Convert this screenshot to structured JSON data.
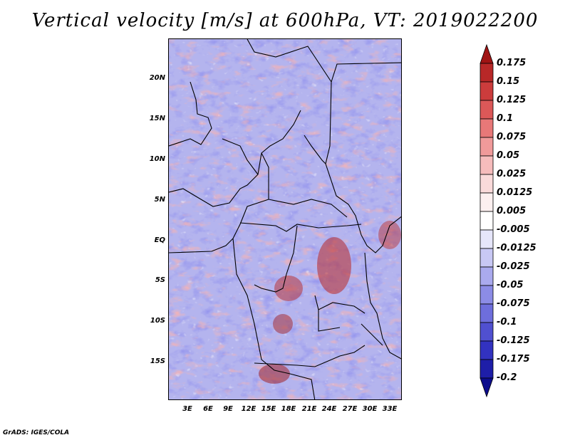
{
  "title": "Vertical velocity [m/s] at 600hPa, VT: 2019022200",
  "credit": "GrADS: IGES/COLA",
  "map": {
    "lat_labels": [
      "20N",
      "15N",
      "10N",
      "5N",
      "EQ",
      "5S",
      "10S",
      "15S"
    ],
    "lon_labels": [
      "3E",
      "6E",
      "9E",
      "12E",
      "15E",
      "18E",
      "21E",
      "24E",
      "27E",
      "30E",
      "33E"
    ]
  },
  "colorbar": {
    "labels": [
      "0.175",
      "0.15",
      "0.125",
      "0.1",
      "0.075",
      "0.05",
      "0.025",
      "0.0125",
      "0.005",
      "-0.005",
      "-0.0125",
      "-0.025",
      "-0.05",
      "-0.075",
      "-0.1",
      "-0.125",
      "-0.175",
      "-0.2"
    ],
    "colors": [
      "#a01414",
      "#b82828",
      "#cc3c3c",
      "#dc5858",
      "#e87878",
      "#f09a9a",
      "#f6bcbc",
      "#fadada",
      "#fdf0f0",
      "#ffffff",
      "#e6e6fa",
      "#c8c8f4",
      "#aaaaee",
      "#8c8ce6",
      "#6e6edc",
      "#5050d0",
      "#3232c0",
      "#1e1ea8",
      "#0c0c8c"
    ]
  }
}
